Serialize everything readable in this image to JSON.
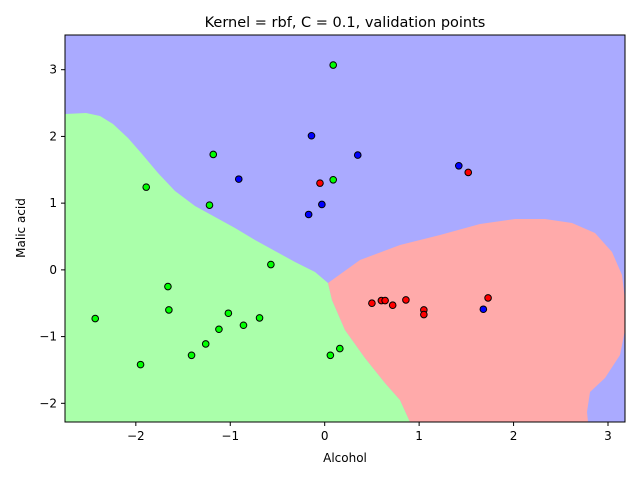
{
  "chart_data": {
    "type": "scatter",
    "title": "Kernel = rbf, C = 0.1, validation points",
    "xlabel": "Alcohol",
    "ylabel": "Malic acid",
    "xlim": [
      -2.75,
      3.18
    ],
    "ylim": [
      -2.28,
      3.52
    ],
    "grid": false,
    "legend": "none",
    "x_ticks": [
      -2,
      -1,
      0,
      1,
      2,
      3
    ],
    "y_ticks": [
      -2,
      -1,
      0,
      1,
      2,
      3
    ],
    "x_tick_labels": [
      "−2",
      "−1",
      "0",
      "1",
      "2",
      "3"
    ],
    "y_tick_labels": [
      "−2",
      "−1",
      "0",
      "1",
      "2",
      "3"
    ],
    "decision_regions": [
      {
        "class": "blue",
        "color": "#aaaaff"
      },
      {
        "class": "green",
        "color": "#aaffaa"
      },
      {
        "class": "red",
        "color": "#ffaaaa"
      }
    ],
    "point_colors": {
      "red": "#ff0000",
      "green": "#00ff00",
      "blue": "#0000ff"
    },
    "series": [
      {
        "class": "red",
        "points": [
          [
            -0.05,
            1.3
          ],
          [
            1.52,
            1.46
          ],
          [
            0.5,
            -0.5
          ],
          [
            0.6,
            -0.46
          ],
          [
            0.64,
            -0.46
          ],
          [
            0.72,
            -0.53
          ],
          [
            0.86,
            -0.45
          ],
          [
            1.05,
            -0.6
          ],
          [
            1.05,
            -0.67
          ],
          [
            1.73,
            -0.42
          ]
        ]
      },
      {
        "class": "green",
        "points": [
          [
            0.09,
            3.07
          ],
          [
            -1.18,
            1.73
          ],
          [
            -1.89,
            1.24
          ],
          [
            0.09,
            1.35
          ],
          [
            -1.22,
            0.97
          ],
          [
            -0.57,
            0.08
          ],
          [
            -1.66,
            -0.25
          ],
          [
            -2.43,
            -0.73
          ],
          [
            -1.65,
            -0.6
          ],
          [
            -1.02,
            -0.65
          ],
          [
            -1.12,
            -0.89
          ],
          [
            -0.69,
            -0.72
          ],
          [
            -0.86,
            -0.83
          ],
          [
            -1.26,
            -1.11
          ],
          [
            -1.41,
            -1.28
          ],
          [
            -1.95,
            -1.42
          ],
          [
            0.16,
            -1.18
          ],
          [
            0.06,
            -1.28
          ]
        ]
      },
      {
        "class": "blue",
        "points": [
          [
            -0.14,
            2.01
          ],
          [
            0.35,
            1.72
          ],
          [
            1.42,
            1.56
          ],
          [
            -0.91,
            1.36
          ],
          [
            -0.03,
            0.98
          ],
          [
            -0.17,
            0.83
          ],
          [
            1.68,
            -0.59
          ]
        ]
      }
    ]
  }
}
